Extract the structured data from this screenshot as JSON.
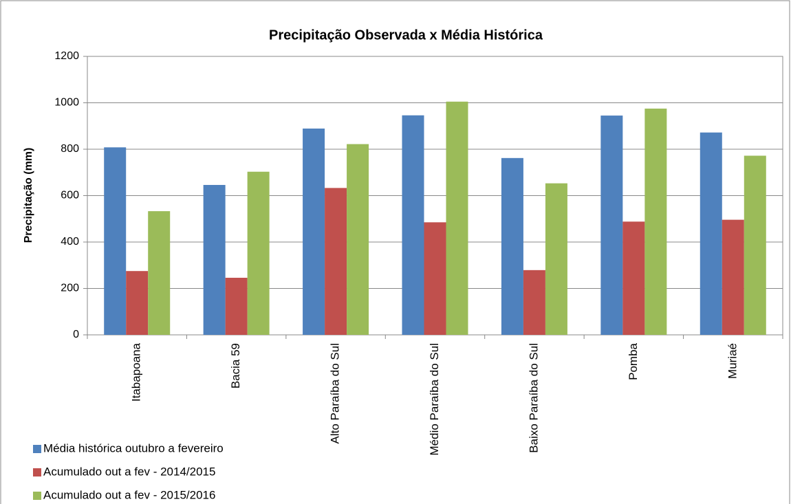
{
  "chart_data": {
    "type": "bar",
    "title": "Precipitação Observada x Média Histórica",
    "y_label": "Precipitação (mm)",
    "categories": [
      "Itabapoana",
      "Bacia 59",
      "Alto Paraíba do Sul",
      "Médio Paraíba do Sul",
      "Baixo Paraíba do Sul",
      "Pomba",
      "Muriaé"
    ],
    "series": [
      {
        "name": "Média histórica outubro a fevereiro",
        "color": "#4f81bd",
        "values": [
          808,
          646,
          889,
          946,
          762,
          945,
          872
        ]
      },
      {
        "name": "Acumulado out a fev - 2014/2015",
        "color": "#c0504d",
        "values": [
          275,
          246,
          633,
          485,
          279,
          488,
          496
        ]
      },
      {
        "name": "Acumulado out a fev - 2015/2016",
        "color": "#9bbb59",
        "values": [
          533,
          703,
          822,
          1005,
          653,
          975,
          772
        ]
      }
    ],
    "ylim": [
      0,
      1200
    ],
    "yticks": [
      0,
      200,
      400,
      600,
      800,
      1000,
      1200
    ],
    "grid": true,
    "legend": "bottom-left"
  }
}
